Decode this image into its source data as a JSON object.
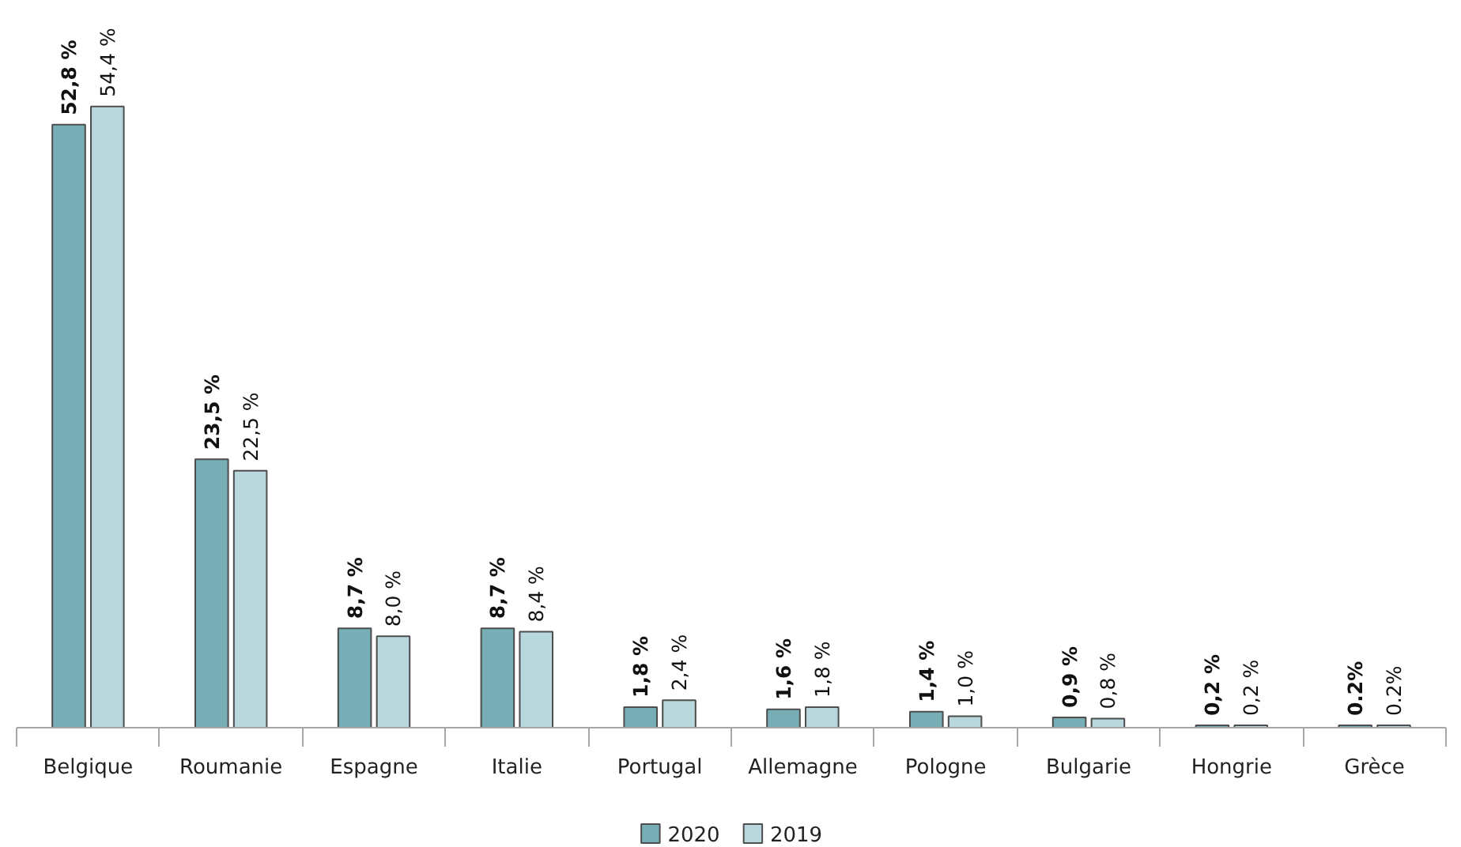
{
  "chart_data": {
    "type": "bar",
    "categories": [
      "Belgique",
      "Roumanie",
      "Espagne",
      "Italie",
      "Portugal",
      "Allemagne",
      "Pologne",
      "Bulgarie",
      "Hongrie",
      "Grèce"
    ],
    "series": [
      {
        "name": "2020",
        "color": "#77aeb6",
        "values": [
          52.8,
          23.5,
          8.7,
          8.7,
          1.8,
          1.6,
          1.4,
          0.9,
          0.2,
          0.2
        ],
        "value_labels": [
          "52,8 %",
          "23,5 %",
          "8,7 %",
          "8,7 %",
          "1,8 %",
          "1,6 %",
          "1,4 %",
          "0,9 %",
          "0,2 %",
          "0.2%"
        ]
      },
      {
        "name": "2019",
        "color": "#b8d8dd",
        "values": [
          54.4,
          22.5,
          8.0,
          8.4,
          2.4,
          1.8,
          1.0,
          0.8,
          0.2,
          0.2
        ],
        "value_labels": [
          "54,4 %",
          "22,5 %",
          "8,0 %",
          "8,4 %",
          "2,4 %",
          "1,8 %",
          "1,0 %",
          "0,8 %",
          "0,2 %",
          "0.2%"
        ]
      }
    ],
    "grid": false,
    "legend": "bottom"
  }
}
